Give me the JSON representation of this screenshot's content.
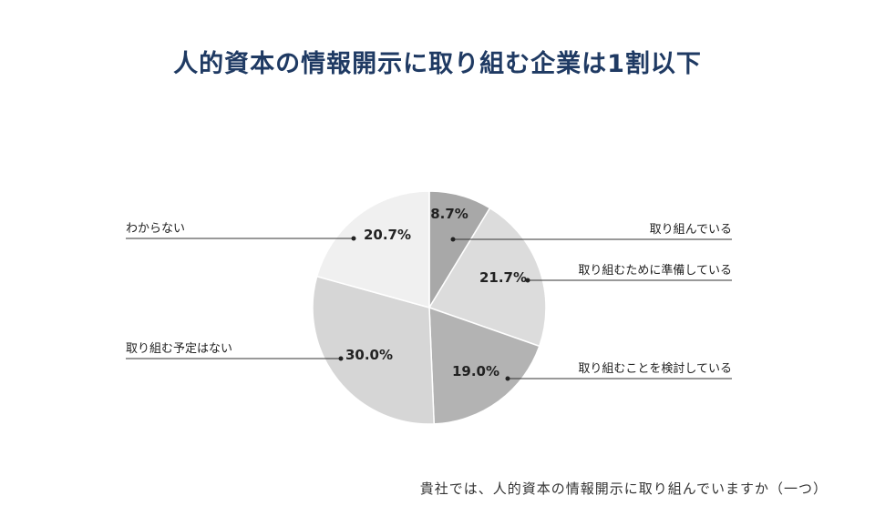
{
  "header": {
    "title": "人的資本の情報開示に取り組む企業は1割以下"
  },
  "footer": {
    "question": "貴社では、人的資本の情報開示に取り組んでいますか（一つ）"
  },
  "chart_data": {
    "type": "pie",
    "start_angle_deg": 0,
    "direction": "clockwise",
    "slices": [
      {
        "label": "取り組んでいる",
        "value": 8.7,
        "display": "8.7%",
        "color": "#a8a8a8"
      },
      {
        "label": "取り組むために準備している",
        "value": 21.7,
        "display": "21.7%",
        "color": "#dcdcdc"
      },
      {
        "label": "取り組むことを検討している",
        "value": 19.0,
        "display": "19.0%",
        "color": "#b3b3b3"
      },
      {
        "label": "取り組む予定はない",
        "value": 30.0,
        "display": "30.0%",
        "color": "#d6d6d6"
      },
      {
        "label": "わからない",
        "value": 20.7,
        "display": "20.7%",
        "color": "#f0f0f0"
      }
    ]
  }
}
